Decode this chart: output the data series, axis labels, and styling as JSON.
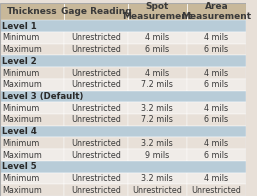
{
  "headers": [
    "Thickness",
    "Gage Reading",
    "Spot\nMeasurement",
    "Area\nMeasurement"
  ],
  "rows": [
    {
      "label": "Level 1",
      "is_level": true,
      "level_row": true
    },
    {
      "label": "Minimum",
      "gage": "Unrestricted",
      "spot": "4 mils",
      "area": "4 mils",
      "is_level": false
    },
    {
      "label": "Maximum",
      "gage": "Unrestricted",
      "spot": "6 mils",
      "area": "6 mils",
      "is_level": false
    },
    {
      "label": "Level 2",
      "is_level": true,
      "level_row": true
    },
    {
      "label": "Minimum",
      "gage": "Unrestricted",
      "spot": "4 mils",
      "area": "4 mils",
      "is_level": false
    },
    {
      "label": "Maximum",
      "gage": "Unrestricted",
      "spot": "7.2 mils",
      "area": "6 mils",
      "is_level": false
    },
    {
      "label": "Level 3 (Default)",
      "is_level": true,
      "level_row": true
    },
    {
      "label": "Minimum",
      "gage": "Unrestricted",
      "spot": "3.2 mils",
      "area": "4 mils",
      "is_level": false
    },
    {
      "label": "Maximum",
      "gage": "Unrestricted",
      "spot": "7.2 mils",
      "area": "6 mils",
      "is_level": false
    },
    {
      "label": "Level 4",
      "is_level": true,
      "level_row": true
    },
    {
      "label": "Minimum",
      "gage": "Unrestricted",
      "spot": "3.2 mils",
      "area": "4 mils",
      "is_level": false
    },
    {
      "label": "Maximum",
      "gage": "Unrestricted",
      "spot": "9 mils",
      "area": "6 mils",
      "is_level": false
    },
    {
      "label": "Level 5",
      "is_level": true,
      "level_row": true
    },
    {
      "label": "Minimum",
      "gage": "Unrestricted",
      "spot": "3.2 mils",
      "area": "4 mils",
      "is_level": false
    },
    {
      "label": "Maximum",
      "gage": "Unrestricted",
      "spot": "Unrestricted",
      "area": "Unrestricted",
      "is_level": false
    }
  ],
  "header_bg": "#c8b89a",
  "level_bg": "#b8ccd8",
  "row_bg_even": "#e8e0d8",
  "row_bg_odd": "#f0ece8",
  "header_fontsize": 6.5,
  "cell_fontsize": 5.8,
  "level_fontsize": 6.2
}
